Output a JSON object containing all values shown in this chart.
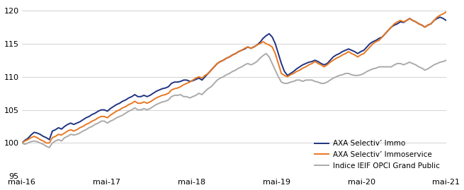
{
  "title": "",
  "ylabel": "",
  "xlabel": "",
  "ylim": [
    95,
    121
  ],
  "yticks": [
    95,
    100,
    105,
    110,
    115,
    120
  ],
  "xtick_labels": [
    "mai-16",
    "mai-17",
    "mai-18",
    "mai-19",
    "mai-20",
    "mai-21"
  ],
  "legend_labels": [
    "AXA Selectiv’ Immo",
    "AXA Selectiv’ Immoservice",
    "Indice IEIF OPCI Grand Public"
  ],
  "colors": [
    "#1f3480",
    "#e87722",
    "#aaaaaa"
  ],
  "line_width": 1.4,
  "background_color": "#ffffff",
  "grid_color": "#cccccc",
  "axa_immo": [
    100.0,
    100.4,
    100.7,
    101.2,
    101.6,
    101.5,
    101.3,
    101.0,
    100.8,
    100.5,
    101.8,
    102.0,
    102.3,
    102.1,
    102.5,
    102.8,
    103.0,
    102.8,
    103.0,
    103.2,
    103.5,
    103.8,
    104.0,
    104.3,
    104.5,
    104.8,
    105.0,
    105.0,
    104.8,
    105.2,
    105.5,
    105.8,
    106.0,
    106.3,
    106.5,
    106.8,
    107.0,
    107.3,
    107.0,
    107.0,
    107.2,
    107.0,
    107.2,
    107.5,
    107.8,
    108.0,
    108.2,
    108.3,
    108.5,
    109.0,
    109.2,
    109.2,
    109.3,
    109.5,
    109.5,
    109.3,
    109.4,
    109.6,
    109.8,
    109.5,
    110.0,
    110.5,
    111.0,
    111.5,
    112.0,
    112.3,
    112.5,
    112.8,
    113.0,
    113.3,
    113.5,
    113.8,
    114.0,
    114.2,
    114.5,
    114.3,
    114.5,
    114.8,
    115.2,
    115.8,
    116.2,
    116.5,
    116.0,
    115.0,
    113.5,
    112.0,
    110.8,
    110.2,
    110.5,
    110.8,
    111.2,
    111.5,
    111.8,
    112.0,
    112.2,
    112.3,
    112.5,
    112.3,
    112.0,
    111.8,
    112.0,
    112.5,
    113.0,
    113.3,
    113.5,
    113.8,
    114.0,
    114.2,
    114.0,
    113.8,
    113.5,
    113.8,
    114.0,
    114.5,
    115.0,
    115.3,
    115.5,
    115.8,
    116.0,
    116.5,
    117.0,
    117.5,
    117.8,
    118.0,
    118.3,
    118.2,
    118.5,
    118.8,
    118.5,
    118.3,
    118.0,
    117.8,
    117.5,
    117.8,
    118.0,
    118.5,
    118.8,
    119.0,
    118.8,
    118.5
  ],
  "axa_immoservice": [
    100.0,
    100.3,
    100.5,
    100.8,
    101.0,
    100.8,
    100.5,
    100.3,
    100.0,
    100.0,
    100.8,
    101.0,
    101.3,
    101.2,
    101.5,
    101.8,
    102.0,
    101.8,
    102.0,
    102.3,
    102.5,
    102.8,
    103.0,
    103.3,
    103.5,
    103.8,
    104.0,
    104.0,
    103.8,
    104.2,
    104.5,
    104.8,
    105.0,
    105.3,
    105.5,
    105.8,
    106.0,
    106.3,
    106.0,
    106.0,
    106.2,
    106.0,
    106.2,
    106.5,
    106.8,
    107.0,
    107.2,
    107.3,
    107.5,
    108.0,
    108.2,
    108.3,
    108.5,
    108.8,
    109.0,
    109.2,
    109.5,
    109.8,
    110.0,
    109.8,
    110.2,
    110.5,
    111.0,
    111.5,
    112.0,
    112.3,
    112.5,
    112.8,
    113.0,
    113.3,
    113.5,
    113.8,
    114.0,
    114.3,
    114.5,
    114.3,
    114.5,
    114.8,
    115.0,
    115.3,
    115.0,
    114.8,
    114.5,
    113.5,
    112.0,
    110.5,
    110.2,
    110.0,
    110.3,
    110.5,
    110.8,
    111.0,
    111.3,
    111.5,
    111.8,
    112.0,
    112.3,
    112.0,
    111.8,
    111.5,
    111.8,
    112.2,
    112.5,
    112.8,
    113.0,
    113.3,
    113.5,
    113.8,
    113.5,
    113.3,
    113.0,
    113.3,
    113.5,
    114.0,
    114.5,
    115.0,
    115.3,
    115.5,
    116.0,
    116.5,
    117.0,
    117.5,
    118.0,
    118.3,
    118.5,
    118.3,
    118.5,
    118.8,
    118.5,
    118.3,
    118.0,
    117.8,
    117.5,
    117.8,
    118.0,
    118.5,
    119.0,
    119.3,
    119.5,
    119.8
  ],
  "indice_ieif": [
    100.0,
    99.8,
    100.0,
    100.2,
    100.3,
    100.2,
    100.0,
    99.8,
    99.5,
    99.3,
    100.0,
    100.3,
    100.5,
    100.3,
    100.8,
    101.0,
    101.3,
    101.2,
    101.3,
    101.5,
    101.8,
    102.0,
    102.3,
    102.5,
    102.8,
    103.0,
    103.3,
    103.3,
    103.0,
    103.3,
    103.5,
    103.8,
    104.0,
    104.2,
    104.5,
    104.8,
    105.0,
    105.3,
    105.0,
    105.0,
    105.2,
    105.0,
    105.2,
    105.5,
    105.8,
    106.0,
    106.2,
    106.3,
    106.5,
    107.0,
    107.2,
    107.2,
    107.3,
    107.0,
    107.0,
    106.8,
    107.0,
    107.2,
    107.5,
    107.3,
    107.8,
    108.2,
    108.5,
    109.0,
    109.5,
    109.8,
    110.0,
    110.3,
    110.5,
    110.8,
    111.0,
    111.3,
    111.5,
    111.8,
    112.0,
    111.8,
    112.0,
    112.3,
    112.8,
    113.2,
    113.5,
    113.0,
    112.0,
    111.0,
    110.0,
    109.2,
    109.0,
    109.0,
    109.2,
    109.3,
    109.5,
    109.5,
    109.3,
    109.5,
    109.5,
    109.5,
    109.3,
    109.2,
    109.0,
    109.0,
    109.2,
    109.5,
    109.8,
    110.0,
    110.2,
    110.3,
    110.5,
    110.5,
    110.3,
    110.2,
    110.2,
    110.3,
    110.5,
    110.8,
    111.0,
    111.2,
    111.3,
    111.5,
    111.5,
    111.5,
    111.5,
    111.5,
    111.8,
    112.0,
    112.0,
    111.8,
    112.0,
    112.2,
    112.0,
    111.8,
    111.5,
    111.3,
    111.0,
    111.2,
    111.5,
    111.8,
    112.0,
    112.2,
    112.3,
    112.5
  ]
}
